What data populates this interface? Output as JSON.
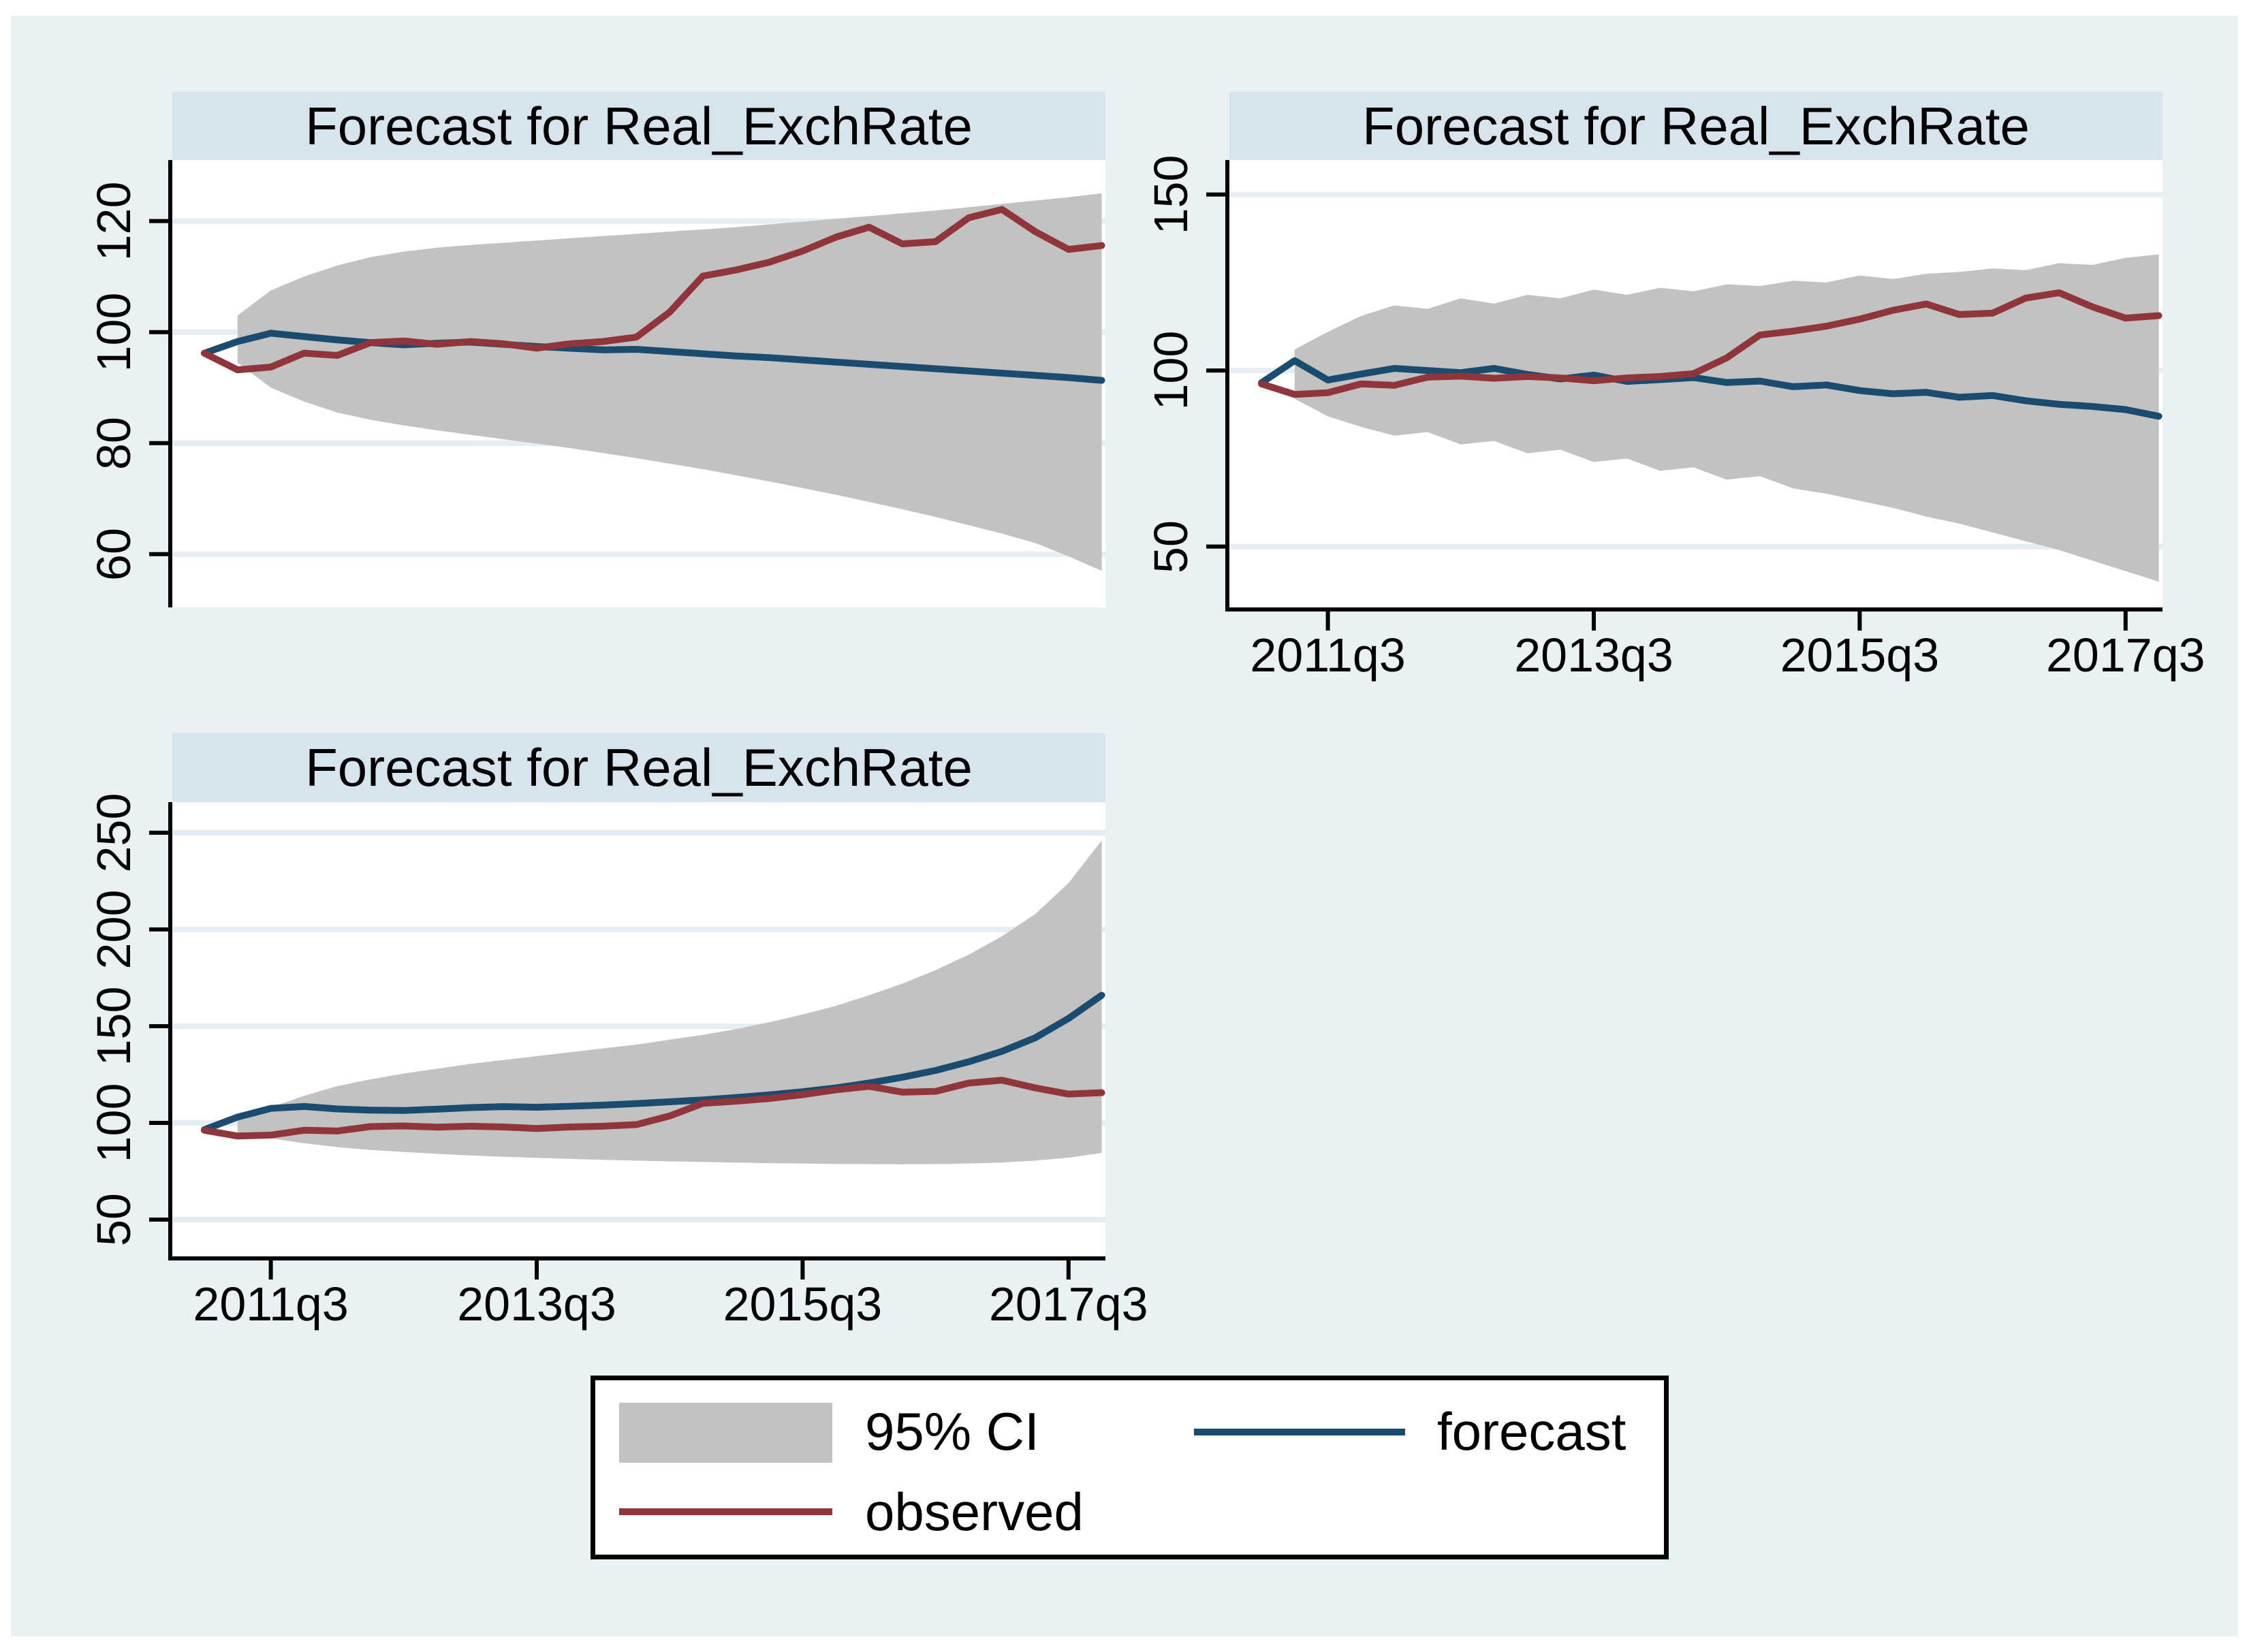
{
  "style": {
    "page_background": "#ffffff",
    "canvas_background": "#eaf1f3",
    "strip_background": "#d8e4ec",
    "plot_background": "#ffffff",
    "grid_color": "#e4eef3",
    "band_color": "#c2c2c2",
    "forecast_color": "#1b4c70",
    "observed_color": "#90353b",
    "axis_color": "#000000",
    "legend_background": "#ffffff",
    "legend_border": "#000000",
    "text_color": "#000000"
  },
  "legend": {
    "items": [
      {
        "label": "95% CI",
        "swatch": "band"
      },
      {
        "label": "observed",
        "swatch": "observed-line"
      },
      {
        "label": "forecast",
        "swatch": "forecast-line"
      }
    ]
  },
  "chart_data": [
    {
      "type": "area",
      "title": "Forecast for Real_ExchRate",
      "xlabel": "",
      "ylabel": "",
      "x_start": "2011q1",
      "x_freq": "quarterly",
      "x_points": 28,
      "x_tick_labels": [
        "2011q3",
        "2013q3",
        "2015q3",
        "2017q3"
      ],
      "x_tick_indices": [
        2,
        10,
        18,
        26
      ],
      "x_axis_visible": false,
      "grid": true,
      "y_ticks": [
        60,
        80,
        100,
        120
      ],
      "ylim": [
        50.4,
        131.0
      ],
      "series": [
        {
          "name": "95% CI",
          "type": "band",
          "start_index": 1,
          "upper": [
            103,
            107.5,
            110,
            112,
            113.5,
            114.5,
            115.2,
            115.7,
            116.1,
            116.5,
            116.9,
            117.3,
            117.7,
            118.1,
            118.5,
            118.9,
            119.4,
            119.9,
            120.4,
            120.9,
            121.4,
            121.9,
            122.5,
            123.1,
            123.7,
            124.3,
            125.0
          ],
          "lower": [
            94.5,
            90,
            87.5,
            85.5,
            84.2,
            83.2,
            82.3,
            81.5,
            80.7,
            79.9,
            79.1,
            78.2,
            77.3,
            76.3,
            75.3,
            74.2,
            73.1,
            71.9,
            70.7,
            69.4,
            68.1,
            66.7,
            65.2,
            63.7,
            62.0,
            59.6,
            57.0
          ]
        },
        {
          "name": "forecast",
          "type": "line",
          "color_key": "forecast_color",
          "values": [
            96.2,
            98.3,
            99.8,
            99.2,
            98.6,
            98.1,
            97.7,
            98.0,
            98.2,
            97.8,
            97.4,
            97.1,
            96.8,
            96.9,
            96.5,
            96.1,
            95.7,
            95.4,
            95.0,
            94.6,
            94.2,
            93.8,
            93.4,
            93.0,
            92.6,
            92.2,
            91.8,
            91.3
          ]
        },
        {
          "name": "observed",
          "type": "line",
          "color_key": "observed_color",
          "values": [
            96.2,
            93.2,
            93.7,
            96.2,
            95.8,
            98.1,
            98.4,
            97.8,
            98.3,
            97.9,
            97.1,
            97.9,
            98.3,
            99.1,
            103.6,
            110.1,
            111.2,
            112.6,
            114.6,
            117.1,
            118.9,
            115.9,
            116.3,
            120.6,
            122.1,
            118.1,
            114.9,
            115.6
          ]
        }
      ]
    },
    {
      "type": "area",
      "title": "Forecast for Real_ExchRate",
      "xlabel": "",
      "ylabel": "",
      "x_start": "2011q1",
      "x_freq": "quarterly",
      "x_points": 28,
      "x_tick_labels": [
        "2011q3",
        "2013q3",
        "2015q3",
        "2017q3"
      ],
      "x_tick_indices": [
        2,
        10,
        18,
        26
      ],
      "x_axis_visible": true,
      "grid": true,
      "y_ticks": [
        50,
        100,
        150
      ],
      "ylim": [
        32.7,
        159.8
      ],
      "series": [
        {
          "name": "95% CI",
          "type": "band",
          "start_index": 1,
          "upper": [
            106,
            111,
            115.5,
            118.5,
            117.5,
            120.5,
            119.0,
            121.5,
            120.5,
            123.0,
            121.5,
            123.5,
            122.5,
            124.5,
            124.0,
            125.5,
            125.0,
            127.0,
            126.0,
            127.5,
            128.0,
            129.0,
            128.5,
            130.5,
            130.0,
            132.0,
            133.0
          ],
          "lower": [
            92,
            87,
            84.0,
            81.5,
            82.5,
            79.0,
            80.0,
            76.5,
            77.5,
            74.0,
            75.0,
            71.5,
            72.5,
            69.0,
            70.0,
            66.5,
            65.0,
            63.0,
            61.0,
            58.5,
            56.5,
            54.0,
            51.5,
            49.0,
            46.0,
            43.0,
            40.0
          ]
        },
        {
          "name": "forecast",
          "type": "line",
          "color_key": "forecast_color",
          "values": [
            96.5,
            102.8,
            97.3,
            99.0,
            100.6,
            100.0,
            99.4,
            100.6,
            98.9,
            97.6,
            98.7,
            96.9,
            97.4,
            98.0,
            96.6,
            97.0,
            95.4,
            95.9,
            94.3,
            93.4,
            93.8,
            92.4,
            92.9,
            91.4,
            90.4,
            89.8,
            88.9,
            87.0
          ]
        },
        {
          "name": "observed",
          "type": "line",
          "color_key": "observed_color",
          "values": [
            96.2,
            93.2,
            93.7,
            96.2,
            95.8,
            98.1,
            98.4,
            97.8,
            98.3,
            97.9,
            97.1,
            97.9,
            98.3,
            99.1,
            103.6,
            110.1,
            111.2,
            112.6,
            114.6,
            117.1,
            118.9,
            115.9,
            116.3,
            120.6,
            122.1,
            118.1,
            114.9,
            115.6
          ]
        }
      ]
    },
    {
      "type": "area",
      "title": "Forecast for Real_ExchRate",
      "xlabel": "",
      "ylabel": "",
      "x_start": "2011q1",
      "x_freq": "quarterly",
      "x_points": 28,
      "x_tick_labels": [
        "2011q3",
        "2013q3",
        "2015q3",
        "2017q3"
      ],
      "x_tick_indices": [
        2,
        10,
        18,
        26
      ],
      "x_axis_visible": true,
      "grid": true,
      "y_ticks": [
        50,
        100,
        150,
        200,
        250
      ],
      "ylim": [
        31.0,
        265.8
      ],
      "series": [
        {
          "name": "95% CI",
          "type": "band",
          "start_index": 1,
          "upper": [
            103,
            108,
            114,
            119,
            122.5,
            125.5,
            128,
            130.5,
            132.5,
            134.5,
            136.5,
            138.5,
            140.5,
            143,
            145.5,
            148.5,
            152,
            156,
            160.5,
            166,
            172,
            179,
            187,
            196.5,
            208,
            224,
            246
          ],
          "lower": [
            94,
            92,
            89.5,
            87.5,
            86,
            85,
            84,
            83.2,
            82.5,
            81.9,
            81.4,
            80.9,
            80.5,
            80.1,
            79.8,
            79.5,
            79.2,
            79.0,
            78.8,
            78.7,
            78.6,
            78.7,
            79.0,
            79.5,
            80.5,
            82.0,
            84.5
          ]
        },
        {
          "name": "forecast",
          "type": "line",
          "color_key": "forecast_color",
          "values": [
            96.5,
            103.0,
            107.5,
            108.5,
            107.2,
            106.6,
            106.4,
            107.1,
            107.9,
            108.4,
            108.1,
            108.6,
            109.2,
            110.0,
            110.9,
            111.9,
            113.1,
            114.5,
            116.1,
            118.1,
            120.6,
            123.6,
            127.1,
            131.6,
            137.0,
            144.0,
            154.0,
            166.0
          ]
        },
        {
          "name": "observed",
          "type": "line",
          "color_key": "observed_color",
          "values": [
            96.2,
            93.2,
            93.7,
            96.2,
            95.8,
            98.1,
            98.4,
            97.8,
            98.3,
            97.9,
            97.1,
            97.9,
            98.3,
            99.1,
            103.6,
            110.1,
            111.2,
            112.6,
            114.6,
            117.1,
            118.9,
            115.9,
            116.3,
            120.6,
            122.1,
            118.1,
            114.9,
            115.6
          ]
        }
      ]
    }
  ]
}
